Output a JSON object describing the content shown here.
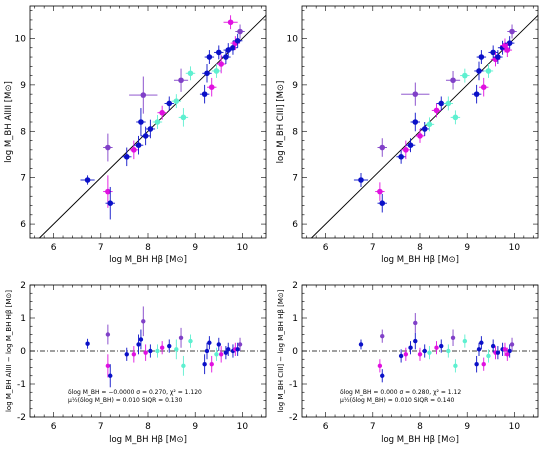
{
  "colors": {
    "blue": "#0a10c8",
    "magenta": "#e010e0",
    "cyan": "#5ef0d0",
    "purple": "#8040c8",
    "axis": "#000000"
  },
  "chart_data": [
    {
      "panel": "top-left",
      "type": "scatter",
      "xlabel": "log M_BH Hβ [M⊙]",
      "ylabel": "log M_BH AlIII [M⊙]",
      "xlim": [
        5.5,
        10.5
      ],
      "ylim": [
        5.7,
        10.7
      ],
      "xticks": [
        6,
        7,
        8,
        9,
        10
      ],
      "yticks": [
        6,
        7,
        8,
        9,
        10
      ],
      "reference_line": "1:1",
      "points": [
        {
          "x": 6.72,
          "y": 6.95,
          "exl": 0.15,
          "exr": 0.15,
          "ey": 0.1,
          "c": "blue"
        },
        {
          "x": 7.15,
          "y": 6.7,
          "exl": 0.1,
          "exr": 0.1,
          "ey": 0.35,
          "c": "magenta"
        },
        {
          "x": 7.2,
          "y": 6.45,
          "exl": 0.1,
          "exr": 0.1,
          "ey": 0.35,
          "c": "blue"
        },
        {
          "x": 7.15,
          "y": 7.65,
          "exl": 0.1,
          "exr": 0.1,
          "ey": 0.3,
          "c": "purple"
        },
        {
          "x": 7.55,
          "y": 7.45,
          "exl": 0.1,
          "exr": 0.1,
          "ey": 0.2,
          "c": "blue"
        },
        {
          "x": 7.7,
          "y": 7.6,
          "exl": 0.1,
          "exr": 0.1,
          "ey": 0.2,
          "c": "magenta"
        },
        {
          "x": 7.8,
          "y": 7.7,
          "exl": 0.1,
          "exr": 0.1,
          "ey": 0.2,
          "c": "blue"
        },
        {
          "x": 7.85,
          "y": 8.2,
          "exl": 0.1,
          "exr": 0.1,
          "ey": 0.3,
          "c": "blue"
        },
        {
          "x": 7.9,
          "y": 8.78,
          "exl": 0.3,
          "exr": 0.3,
          "ey": 0.4,
          "c": "purple"
        },
        {
          "x": 7.95,
          "y": 7.9,
          "exl": 0.1,
          "exr": 0.1,
          "ey": 0.2,
          "c": "blue"
        },
        {
          "x": 8.05,
          "y": 8.05,
          "exl": 0.1,
          "exr": 0.1,
          "ey": 0.2,
          "c": "blue"
        },
        {
          "x": 8.2,
          "y": 8.2,
          "exl": 0.1,
          "exr": 0.1,
          "ey": 0.15,
          "c": "cyan"
        },
        {
          "x": 8.3,
          "y": 8.4,
          "exl": 0.1,
          "exr": 0.1,
          "ey": 0.15,
          "c": "magenta"
        },
        {
          "x": 8.45,
          "y": 8.6,
          "exl": 0.1,
          "exr": 0.1,
          "ey": 0.15,
          "c": "blue"
        },
        {
          "x": 8.6,
          "y": 8.65,
          "exl": 0.1,
          "exr": 0.1,
          "ey": 0.15,
          "c": "cyan"
        },
        {
          "x": 8.7,
          "y": 9.1,
          "exl": 0.15,
          "exr": 0.15,
          "ey": 0.25,
          "c": "purple"
        },
        {
          "x": 8.75,
          "y": 8.3,
          "exl": 0.1,
          "exr": 0.1,
          "ey": 0.2,
          "c": "cyan"
        },
        {
          "x": 8.9,
          "y": 9.25,
          "exl": 0.1,
          "exr": 0.1,
          "ey": 0.15,
          "c": "cyan"
        },
        {
          "x": 9.2,
          "y": 8.8,
          "exl": 0.1,
          "exr": 0.1,
          "ey": 0.2,
          "c": "blue"
        },
        {
          "x": 9.25,
          "y": 9.25,
          "exl": 0.1,
          "exr": 0.1,
          "ey": 0.2,
          "c": "blue"
        },
        {
          "x": 9.3,
          "y": 9.6,
          "exl": 0.1,
          "exr": 0.1,
          "ey": 0.15,
          "c": "blue"
        },
        {
          "x": 9.35,
          "y": 8.95,
          "exl": 0.1,
          "exr": 0.1,
          "ey": 0.2,
          "c": "magenta"
        },
        {
          "x": 9.45,
          "y": 9.3,
          "exl": 0.1,
          "exr": 0.1,
          "ey": 0.15,
          "c": "cyan"
        },
        {
          "x": 9.5,
          "y": 9.7,
          "exl": 0.1,
          "exr": 0.1,
          "ey": 0.15,
          "c": "blue"
        },
        {
          "x": 9.55,
          "y": 9.45,
          "exl": 0.1,
          "exr": 0.1,
          "ey": 0.2,
          "c": "magenta"
        },
        {
          "x": 9.65,
          "y": 9.6,
          "exl": 0.1,
          "exr": 0.1,
          "ey": 0.15,
          "c": "blue"
        },
        {
          "x": 9.7,
          "y": 9.75,
          "exl": 0.1,
          "exr": 0.1,
          "ey": 0.15,
          "c": "blue"
        },
        {
          "x": 9.8,
          "y": 9.8,
          "exl": 0.1,
          "exr": 0.1,
          "ey": 0.15,
          "c": "blue"
        },
        {
          "x": 9.85,
          "y": 9.9,
          "exl": 0.1,
          "exr": 0.1,
          "ey": 0.15,
          "c": "magenta"
        },
        {
          "x": 9.9,
          "y": 9.95,
          "exl": 0.1,
          "exr": 0.1,
          "ey": 0.15,
          "c": "blue"
        },
        {
          "x": 9.95,
          "y": 10.15,
          "exl": 0.1,
          "exr": 0.1,
          "ey": 0.15,
          "c": "purple"
        },
        {
          "x": 9.75,
          "y": 10.35,
          "exl": 0.15,
          "exr": 0.15,
          "ey": 0.15,
          "c": "magenta"
        }
      ]
    },
    {
      "panel": "top-right",
      "type": "scatter",
      "xlabel": "log M_BH Hβ [M⊙]",
      "ylabel": "log M_BH CIII] [M⊙]",
      "xlim": [
        5.5,
        10.5
      ],
      "ylim": [
        5.7,
        10.7
      ],
      "xticks": [
        6,
        7,
        8,
        9,
        10
      ],
      "yticks": [
        6,
        7,
        8,
        9,
        10
      ],
      "reference_line": "1:1",
      "points": [
        {
          "x": 6.75,
          "y": 6.95,
          "exl": 0.15,
          "exr": 0.15,
          "ey": 0.15,
          "c": "blue"
        },
        {
          "x": 7.15,
          "y": 6.7,
          "exl": 0.1,
          "exr": 0.1,
          "ey": 0.2,
          "c": "magenta"
        },
        {
          "x": 7.2,
          "y": 6.45,
          "exl": 0.1,
          "exr": 0.1,
          "ey": 0.2,
          "c": "blue"
        },
        {
          "x": 7.2,
          "y": 7.65,
          "exl": 0.1,
          "exr": 0.1,
          "ey": 0.2,
          "c": "purple"
        },
        {
          "x": 7.6,
          "y": 7.45,
          "exl": 0.1,
          "exr": 0.1,
          "ey": 0.15,
          "c": "blue"
        },
        {
          "x": 7.7,
          "y": 7.6,
          "exl": 0.1,
          "exr": 0.1,
          "ey": 0.2,
          "c": "magenta"
        },
        {
          "x": 7.8,
          "y": 7.7,
          "exl": 0.1,
          "exr": 0.1,
          "ey": 0.15,
          "c": "blue"
        },
        {
          "x": 7.9,
          "y": 8.2,
          "exl": 0.1,
          "exr": 0.1,
          "ey": 0.2,
          "c": "blue"
        },
        {
          "x": 7.9,
          "y": 8.8,
          "exl": 0.3,
          "exr": 0.3,
          "ey": 0.25,
          "c": "purple"
        },
        {
          "x": 8.0,
          "y": 7.9,
          "exl": 0.1,
          "exr": 0.1,
          "ey": 0.15,
          "c": "magenta"
        },
        {
          "x": 8.1,
          "y": 8.05,
          "exl": 0.1,
          "exr": 0.1,
          "ey": 0.15,
          "c": "blue"
        },
        {
          "x": 8.2,
          "y": 8.15,
          "exl": 0.1,
          "exr": 0.1,
          "ey": 0.15,
          "c": "cyan"
        },
        {
          "x": 8.35,
          "y": 8.45,
          "exl": 0.1,
          "exr": 0.1,
          "ey": 0.15,
          "c": "magenta"
        },
        {
          "x": 8.45,
          "y": 8.6,
          "exl": 0.1,
          "exr": 0.1,
          "ey": 0.15,
          "c": "blue"
        },
        {
          "x": 8.6,
          "y": 8.6,
          "exl": 0.1,
          "exr": 0.1,
          "ey": 0.15,
          "c": "cyan"
        },
        {
          "x": 8.7,
          "y": 9.1,
          "exl": 0.15,
          "exr": 0.15,
          "ey": 0.2,
          "c": "purple"
        },
        {
          "x": 8.75,
          "y": 8.3,
          "exl": 0.1,
          "exr": 0.1,
          "ey": 0.15,
          "c": "cyan"
        },
        {
          "x": 8.95,
          "y": 9.2,
          "exl": 0.1,
          "exr": 0.1,
          "ey": 0.15,
          "c": "cyan"
        },
        {
          "x": 9.2,
          "y": 8.8,
          "exl": 0.1,
          "exr": 0.1,
          "ey": 0.2,
          "c": "blue"
        },
        {
          "x": 9.25,
          "y": 9.3,
          "exl": 0.1,
          "exr": 0.1,
          "ey": 0.2,
          "c": "blue"
        },
        {
          "x": 9.3,
          "y": 9.6,
          "exl": 0.1,
          "exr": 0.1,
          "ey": 0.15,
          "c": "blue"
        },
        {
          "x": 9.35,
          "y": 8.95,
          "exl": 0.1,
          "exr": 0.1,
          "ey": 0.2,
          "c": "magenta"
        },
        {
          "x": 9.45,
          "y": 9.3,
          "exl": 0.1,
          "exr": 0.1,
          "ey": 0.15,
          "c": "cyan"
        },
        {
          "x": 9.55,
          "y": 9.7,
          "exl": 0.1,
          "exr": 0.1,
          "ey": 0.15,
          "c": "blue"
        },
        {
          "x": 9.6,
          "y": 9.55,
          "exl": 0.1,
          "exr": 0.1,
          "ey": 0.15,
          "c": "magenta"
        },
        {
          "x": 9.65,
          "y": 9.6,
          "exl": 0.1,
          "exr": 0.1,
          "ey": 0.15,
          "c": "blue"
        },
        {
          "x": 9.75,
          "y": 9.8,
          "exl": 0.1,
          "exr": 0.1,
          "ey": 0.15,
          "c": "blue"
        },
        {
          "x": 9.8,
          "y": 9.85,
          "exl": 0.1,
          "exr": 0.1,
          "ey": 0.15,
          "c": "magenta"
        },
        {
          "x": 9.9,
          "y": 9.9,
          "exl": 0.1,
          "exr": 0.1,
          "ey": 0.15,
          "c": "blue"
        },
        {
          "x": 9.95,
          "y": 10.15,
          "exl": 0.1,
          "exr": 0.1,
          "ey": 0.15,
          "c": "purple"
        },
        {
          "x": 9.85,
          "y": 9.75,
          "exl": 0.1,
          "exr": 0.1,
          "ey": 0.15,
          "c": "magenta"
        }
      ]
    },
    {
      "panel": "bottom-left",
      "type": "scatter",
      "xlabel": "log M_BH Hβ [M⊙]",
      "ylabel": "log M_BH AlIII − log M_BH Hβ [M⊙]",
      "xlim": [
        5.5,
        10.5
      ],
      "ylim": [
        -2,
        2
      ],
      "xticks": [
        6,
        7,
        8,
        9,
        10
      ],
      "yticks": [
        -2,
        -1,
        0,
        1,
        2
      ],
      "reference_line": "y=0 dash-dot",
      "stats": {
        "line1": "δlog M_BH = −0.0000  σ = 0.270, χ² = 1.120",
        "line2": "μ½(δlog M_BH) = 0.010  SIQR = 0.130"
      },
      "points": [
        {
          "x": 6.72,
          "y": 0.22,
          "ey": 0.15,
          "c": "blue"
        },
        {
          "x": 7.15,
          "y": -0.45,
          "ey": 0.35,
          "c": "magenta"
        },
        {
          "x": 7.2,
          "y": -0.75,
          "ey": 0.35,
          "c": "blue"
        },
        {
          "x": 7.15,
          "y": 0.5,
          "ey": 0.3,
          "c": "purple"
        },
        {
          "x": 7.55,
          "y": -0.1,
          "ey": 0.2,
          "c": "blue"
        },
        {
          "x": 7.7,
          "y": -0.1,
          "ey": 0.25,
          "c": "magenta"
        },
        {
          "x": 7.8,
          "y": 0.2,
          "ey": 0.3,
          "c": "blue"
        },
        {
          "x": 7.85,
          "y": 0.35,
          "ey": 0.3,
          "c": "blue"
        },
        {
          "x": 7.9,
          "y": 0.9,
          "ey": 0.45,
          "c": "purple"
        },
        {
          "x": 7.95,
          "y": -0.05,
          "ey": 0.25,
          "c": "magenta"
        },
        {
          "x": 8.05,
          "y": 0.0,
          "ey": 0.2,
          "c": "blue"
        },
        {
          "x": 8.2,
          "y": 0.0,
          "ey": 0.2,
          "c": "cyan"
        },
        {
          "x": 8.3,
          "y": 0.1,
          "ey": 0.2,
          "c": "magenta"
        },
        {
          "x": 8.45,
          "y": 0.15,
          "ey": 0.2,
          "c": "blue"
        },
        {
          "x": 8.6,
          "y": 0.05,
          "ey": 0.3,
          "c": "cyan"
        },
        {
          "x": 8.7,
          "y": 0.4,
          "ey": 0.3,
          "c": "purple"
        },
        {
          "x": 8.75,
          "y": -0.45,
          "ey": 0.3,
          "c": "cyan"
        },
        {
          "x": 8.9,
          "y": 0.3,
          "ey": 0.2,
          "c": "cyan"
        },
        {
          "x": 9.2,
          "y": -0.4,
          "ey": 0.3,
          "c": "blue"
        },
        {
          "x": 9.25,
          "y": 0.0,
          "ey": 0.25,
          "c": "blue"
        },
        {
          "x": 9.3,
          "y": 0.25,
          "ey": 0.2,
          "c": "blue"
        },
        {
          "x": 9.35,
          "y": -0.4,
          "ey": 0.25,
          "c": "magenta"
        },
        {
          "x": 9.45,
          "y": -0.1,
          "ey": 0.2,
          "c": "cyan"
        },
        {
          "x": 9.5,
          "y": 0.2,
          "ey": 0.2,
          "c": "blue"
        },
        {
          "x": 9.55,
          "y": -0.1,
          "ey": 0.25,
          "c": "magenta"
        },
        {
          "x": 9.65,
          "y": -0.05,
          "ey": 0.2,
          "c": "blue"
        },
        {
          "x": 9.7,
          "y": 0.05,
          "ey": 0.2,
          "c": "blue"
        },
        {
          "x": 9.8,
          "y": 0.0,
          "ey": 0.2,
          "c": "blue"
        },
        {
          "x": 9.85,
          "y": 0.05,
          "ey": 0.2,
          "c": "magenta"
        },
        {
          "x": 9.9,
          "y": 0.05,
          "ey": 0.2,
          "c": "blue"
        },
        {
          "x": 9.95,
          "y": 0.2,
          "ey": 0.2,
          "c": "purple"
        }
      ]
    },
    {
      "panel": "bottom-right",
      "type": "scatter",
      "xlabel": "log M_BH Hβ [M⊙]",
      "ylabel": "log M_BH CIII] − log M_BH Hβ [M⊙]",
      "xlim": [
        5.5,
        10.5
      ],
      "ylim": [
        -2,
        2
      ],
      "xticks": [
        6,
        7,
        8,
        9,
        10
      ],
      "yticks": [
        -2,
        -1,
        0,
        1,
        2
      ],
      "reference_line": "y=0 dash-dot",
      "stats": {
        "line1": "δlog M_BH = 0.000  σ = 0.280, χ² = 1.12",
        "line2": "μ½(δlog M_BH) = 0.010  SIQR = 0.140"
      },
      "points": [
        {
          "x": 6.75,
          "y": 0.2,
          "ey": 0.15,
          "c": "blue"
        },
        {
          "x": 7.15,
          "y": -0.45,
          "ey": 0.2,
          "c": "magenta"
        },
        {
          "x": 7.2,
          "y": -0.75,
          "ey": 0.2,
          "c": "blue"
        },
        {
          "x": 7.2,
          "y": 0.45,
          "ey": 0.2,
          "c": "purple"
        },
        {
          "x": 7.6,
          "y": -0.15,
          "ey": 0.2,
          "c": "blue"
        },
        {
          "x": 7.7,
          "y": -0.1,
          "ey": 0.2,
          "c": "magenta"
        },
        {
          "x": 7.8,
          "y": 0.1,
          "ey": 0.2,
          "c": "blue"
        },
        {
          "x": 7.9,
          "y": 0.3,
          "ey": 0.25,
          "c": "blue"
        },
        {
          "x": 7.9,
          "y": 0.85,
          "ey": 0.3,
          "c": "purple"
        },
        {
          "x": 8.0,
          "y": -0.1,
          "ey": 0.2,
          "c": "magenta"
        },
        {
          "x": 8.1,
          "y": 0.0,
          "ey": 0.2,
          "c": "blue"
        },
        {
          "x": 8.2,
          "y": -0.05,
          "ey": 0.2,
          "c": "cyan"
        },
        {
          "x": 8.35,
          "y": 0.1,
          "ey": 0.2,
          "c": "magenta"
        },
        {
          "x": 8.45,
          "y": 0.15,
          "ey": 0.2,
          "c": "blue"
        },
        {
          "x": 8.6,
          "y": 0.0,
          "ey": 0.2,
          "c": "cyan"
        },
        {
          "x": 8.7,
          "y": 0.4,
          "ey": 0.25,
          "c": "purple"
        },
        {
          "x": 8.75,
          "y": -0.45,
          "ey": 0.2,
          "c": "cyan"
        },
        {
          "x": 8.95,
          "y": 0.3,
          "ey": 0.2,
          "c": "cyan"
        },
        {
          "x": 9.2,
          "y": -0.4,
          "ey": 0.25,
          "c": "blue"
        },
        {
          "x": 9.25,
          "y": 0.05,
          "ey": 0.2,
          "c": "blue"
        },
        {
          "x": 9.3,
          "y": 0.25,
          "ey": 0.2,
          "c": "blue"
        },
        {
          "x": 9.35,
          "y": -0.4,
          "ey": 0.2,
          "c": "magenta"
        },
        {
          "x": 9.45,
          "y": -0.15,
          "ey": 0.2,
          "c": "cyan"
        },
        {
          "x": 9.55,
          "y": 0.15,
          "ey": 0.2,
          "c": "blue"
        },
        {
          "x": 9.6,
          "y": -0.05,
          "ey": 0.2,
          "c": "magenta"
        },
        {
          "x": 9.65,
          "y": -0.05,
          "ey": 0.2,
          "c": "blue"
        },
        {
          "x": 9.75,
          "y": 0.05,
          "ey": 0.2,
          "c": "blue"
        },
        {
          "x": 9.8,
          "y": 0.05,
          "ey": 0.2,
          "c": "magenta"
        },
        {
          "x": 9.9,
          "y": 0.0,
          "ey": 0.2,
          "c": "blue"
        },
        {
          "x": 9.95,
          "y": 0.2,
          "ey": 0.2,
          "c": "purple"
        },
        {
          "x": 9.85,
          "y": -0.1,
          "ey": 0.2,
          "c": "magenta"
        }
      ]
    }
  ]
}
